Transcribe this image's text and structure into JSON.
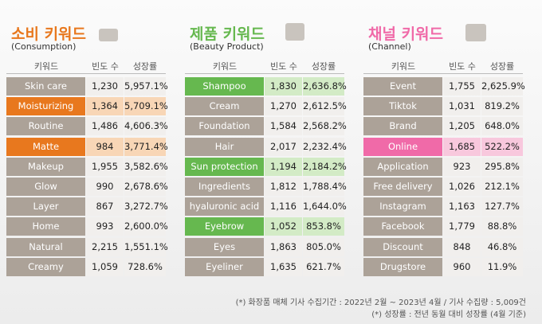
{
  "panels": [
    {
      "title": "소비 키워드",
      "subtitle": "(Consumption)",
      "accent": "#e8781e",
      "accent_light": "#f8d6b6",
      "highlighted": [
        1,
        3
      ],
      "headers": [
        "키워드",
        "빈도 수",
        "성장률"
      ],
      "rows": [
        [
          "Skin care",
          "1,230",
          "5,957.1%"
        ],
        [
          "Moisturizing",
          "1,364",
          "5,709.1%"
        ],
        [
          "Routine",
          "1,486",
          "4,606.3%"
        ],
        [
          "Matte",
          "984",
          "3,771.4%"
        ],
        [
          "Makeup",
          "1,955",
          "3,582.6%"
        ],
        [
          "Glow",
          "990",
          "2,678.6%"
        ],
        [
          "Layer",
          "867",
          "3,272.7%"
        ],
        [
          "Home",
          "993",
          "2,600.0%"
        ],
        [
          "Natural",
          "2,215",
          "1,551.1%"
        ],
        [
          "Creamy",
          "1,059",
          "728.6%"
        ]
      ]
    },
    {
      "title": "제품 키워드",
      "subtitle": "(Beauty Product)",
      "accent": "#66b84f",
      "accent_light": "#d3ebc6",
      "highlighted": [
        0,
        4,
        7
      ],
      "headers": [
        "키워드",
        "빈도 수",
        "성장률"
      ],
      "rows": [
        [
          "Shampoo",
          "1,830",
          "2,636.8%"
        ],
        [
          "Cream",
          "1,270",
          "2,612.5%"
        ],
        [
          "Foundation",
          "1,584",
          "2,568.2%"
        ],
        [
          "Hair",
          "2,017",
          "2,232.4%"
        ],
        [
          "Sun protection",
          "1,194",
          "2,184.2%"
        ],
        [
          "Ingredients",
          "1,812",
          "1,788.4%"
        ],
        [
          "hyaluronic acid",
          "1,116",
          "1,644.0%"
        ],
        [
          "Eyebrow",
          "1,052",
          "853.8%"
        ],
        [
          "Eyes",
          "1,863",
          "805.0%"
        ],
        [
          "Eyeliner",
          "1,635",
          "621.7%"
        ]
      ]
    },
    {
      "title": "채널 키워드",
      "subtitle": "(Channel)",
      "accent": "#f06aa8",
      "accent_light": "#f8c8dd",
      "highlighted": [
        3
      ],
      "headers": [
        "키워드",
        "빈도 수",
        "성장률"
      ],
      "rows": [
        [
          "Event",
          "1,755",
          "2,625.9%"
        ],
        [
          "Tiktok",
          "1,031",
          "819.2%"
        ],
        [
          "Brand",
          "1,205",
          "648.0%"
        ],
        [
          "Online",
          "1,685",
          "522.2%"
        ],
        [
          "Application",
          "923",
          "295.8%"
        ],
        [
          "Free delivery",
          "1,026",
          "212.1%"
        ],
        [
          "Instagram",
          "1,163",
          "127.7%"
        ],
        [
          "Facebook",
          "1,779",
          "88.8%"
        ],
        [
          "Discount",
          "848",
          "46.8%"
        ],
        [
          "Drugstore",
          "960",
          "11.9%"
        ]
      ]
    }
  ],
  "footnotes": [
    "(*) 화장품 매체 기사 수집기간 : 2022년 2월 ~ 2023년 4월  / 기사 수집량 : 5,009건",
    "(*) 성장률 : 전년 동월 대비 성장률 (4월 기준)"
  ]
}
